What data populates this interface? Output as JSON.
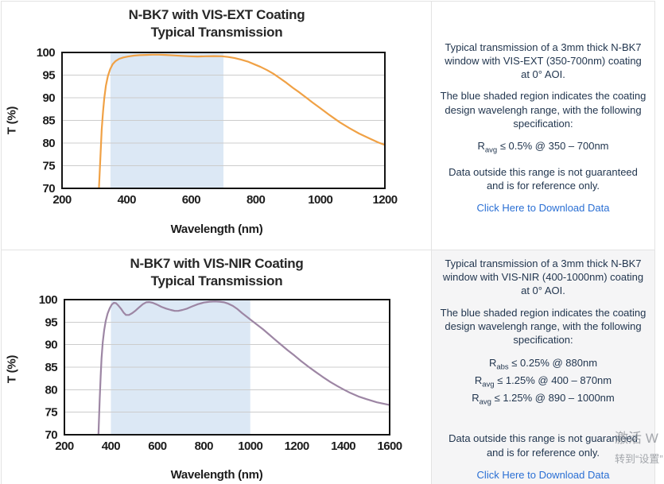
{
  "chart_data": [
    {
      "type": "line",
      "title_line1": "N-BK7 with VIS-EXT Coating",
      "title_line2": "Typical Transmission",
      "xlabel": "Wavelength (nm)",
      "ylabel": "T (%)",
      "xlim": [
        200,
        1200
      ],
      "ylim": [
        70,
        100
      ],
      "xticks": [
        200,
        400,
        600,
        800,
        1000,
        1200
      ],
      "yticks": [
        70,
        75,
        80,
        85,
        90,
        95,
        100
      ],
      "grid": "horizontal",
      "grid_color": "#cccccc",
      "axis_color": "#141414",
      "line_color": "#f0a145",
      "shaded_region": {
        "x0": 350,
        "x1": 700,
        "color": "#dce8f5"
      },
      "series": [
        {
          "name": "VIS-EXT transmission",
          "x": [
            314,
            317,
            320,
            323,
            327,
            331,
            336,
            342,
            349,
            357,
            366,
            377,
            390,
            405,
            422,
            440,
            460,
            480,
            500,
            520,
            545,
            570,
            595,
            620,
            645,
            670,
            695,
            715,
            735,
            755,
            775,
            795,
            815,
            835,
            855,
            875,
            895,
            915,
            935,
            955,
            975,
            1000,
            1030,
            1060,
            1090,
            1120,
            1150,
            1180,
            1200
          ],
          "y": [
            69.5,
            74,
            78.5,
            83,
            87,
            90,
            92.7,
            94.8,
            96.3,
            97.4,
            98.1,
            98.6,
            98.9,
            99.1,
            99.3,
            99.4,
            99.45,
            99.5,
            99.5,
            99.45,
            99.35,
            99.25,
            99.15,
            99.1,
            99.15,
            99.2,
            99.15,
            99.0,
            98.75,
            98.4,
            98.0,
            97.4,
            96.8,
            96.1,
            95.3,
            94.3,
            93.3,
            92.2,
            91.2,
            90.1,
            89.0,
            87.7,
            86.1,
            84.6,
            83.3,
            82.1,
            81.1,
            80.1,
            79.6
          ]
        }
      ]
    },
    {
      "type": "line",
      "title_line1": "N-BK7 with VIS-NIR Coating",
      "title_line2": "Typical Transmission",
      "xlabel": "Wavelength (nm)",
      "ylabel": "T (%)",
      "xlim": [
        200,
        1600
      ],
      "ylim": [
        70,
        100
      ],
      "xticks": [
        200,
        400,
        600,
        800,
        1000,
        1200,
        1400,
        1600
      ],
      "yticks": [
        70,
        75,
        80,
        85,
        90,
        95,
        100
      ],
      "grid": "horizontal",
      "grid_color": "#cccccc",
      "axis_color": "#141414",
      "line_color": "#9d86a4",
      "shaded_region": {
        "x0": 400,
        "x1": 1000,
        "color": "#dce8f5"
      },
      "series": [
        {
          "name": "VIS-NIR transmission",
          "x": [
            346,
            349,
            352,
            356,
            360,
            365,
            371,
            378,
            386,
            395,
            404,
            413,
            422,
            432,
            443,
            455,
            465,
            478,
            492,
            507,
            522,
            538,
            552,
            565,
            580,
            598,
            618,
            638,
            658,
            675,
            690,
            708,
            728,
            750,
            775,
            800,
            825,
            848,
            868,
            888,
            905,
            925,
            945,
            965,
            985,
            1005,
            1030,
            1055,
            1080,
            1105,
            1130,
            1160,
            1190,
            1220,
            1250,
            1280,
            1310,
            1345,
            1375,
            1400,
            1430,
            1465,
            1500,
            1545,
            1600
          ],
          "y": [
            69.5,
            73.5,
            78,
            83,
            87,
            90.5,
            93.2,
            95.3,
            96.9,
            98.1,
            98.9,
            99.3,
            99.2,
            98.7,
            98.0,
            97.1,
            96.6,
            96.6,
            97.0,
            97.6,
            98.3,
            99.0,
            99.4,
            99.45,
            99.3,
            98.9,
            98.4,
            98.0,
            97.7,
            97.5,
            97.5,
            97.7,
            98.0,
            98.5,
            99.0,
            99.35,
            99.55,
            99.6,
            99.55,
            99.4,
            99.1,
            98.6,
            97.9,
            97.0,
            96.2,
            95.4,
            94.4,
            93.4,
            92.3,
            91.2,
            90.1,
            88.8,
            87.6,
            86.3,
            85.1,
            84.0,
            82.9,
            81.7,
            80.8,
            80.1,
            79.3,
            78.5,
            77.9,
            77.2,
            76.6
          ]
        }
      ]
    }
  ],
  "panels": [
    {
      "paragraph1": "Typical transmission of a 3mm thick N-BK7 window with VIS-EXT (350-700nm) coating at 0° AOI.",
      "paragraph2": "The blue shaded region indicates the coating design wavelengh range, with the following specification:",
      "specs": [
        {
          "base": "R",
          "sub": "avg",
          "text": " ≤ 0.5% @ 350 – 700nm"
        }
      ],
      "paragraph3": "Data outside this range is not guaranteed and is for reference only.",
      "link": "Click Here to Download Data"
    },
    {
      "paragraph1": "Typical transmission of a 3mm thick N-BK7 window with VIS-NIR (400-1000nm) coating at 0° AOI.",
      "paragraph2": "The blue shaded region indicates the coating design wavelengh range, with the following specification:",
      "specs": [
        {
          "base": "R",
          "sub": "abs",
          "text": " ≤ 0.25% @ 880nm"
        },
        {
          "base": "R",
          "sub": "avg",
          "text": " ≤ 1.25% @ 400 – 870nm"
        },
        {
          "base": "R",
          "sub": "avg",
          "text": " ≤ 1.25% @ 890 – 1000nm"
        }
      ],
      "paragraph3": "Data outside this range is not guaranteed and is for reference only.",
      "link": "Click Here to Download Data"
    }
  ],
  "watermark": {
    "line1": "激活 W",
    "line2": "转到“设置”"
  }
}
